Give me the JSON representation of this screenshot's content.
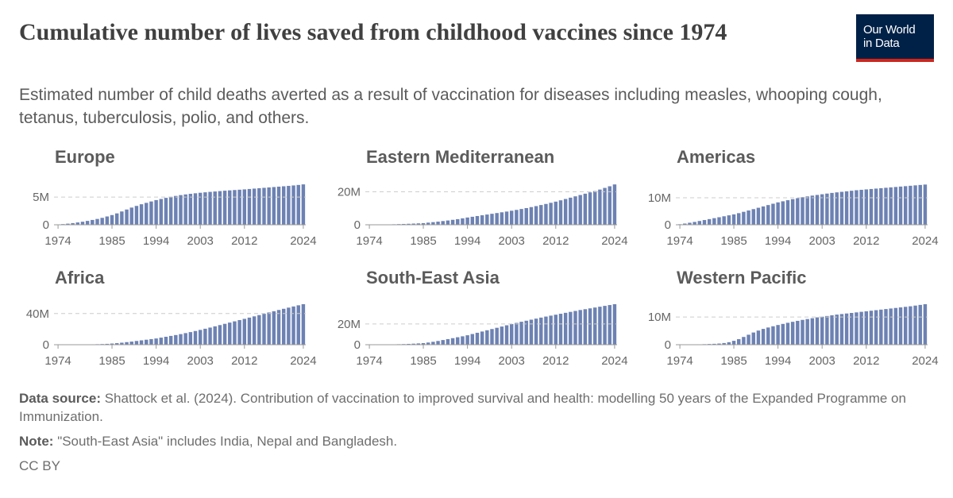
{
  "title": "Cumulative number of lives saved from childhood vaccines since 1974",
  "subtitle": "Estimated number of child deaths averted as a result of vaccination for diseases including measles, whooping cough, tetanus, tuberculosis, polio, and others.",
  "logo": [
    "Our World",
    "in Data"
  ],
  "source_label": "Data source:",
  "source": "Shattock et al. (2024). Contribution of vaccination to improved survival and health: modelling 50 years of the Expanded Programme on Immunization.",
  "note_label": "Note:",
  "note": "\"South-East Asia\" includes India, Nepal and Bangladesh.",
  "license": "CC BY",
  "chart_data": [
    {
      "type": "bar",
      "title": "Europe",
      "color": "#6d82b3",
      "x": [
        1974,
        1975,
        1976,
        1977,
        1978,
        1979,
        1980,
        1981,
        1982,
        1983,
        1984,
        1985,
        1986,
        1987,
        1988,
        1989,
        1990,
        1991,
        1992,
        1993,
        1994,
        1995,
        1996,
        1997,
        1998,
        1999,
        2000,
        2001,
        2002,
        2003,
        2004,
        2005,
        2006,
        2007,
        2008,
        2009,
        2010,
        2011,
        2012,
        2013,
        2014,
        2015,
        2016,
        2017,
        2018,
        2019,
        2020,
        2021,
        2022,
        2023,
        2024
      ],
      "values": [
        0.05,
        0.12,
        0.2,
        0.3,
        0.42,
        0.55,
        0.7,
        0.87,
        1.05,
        1.25,
        1.5,
        1.75,
        2.05,
        2.4,
        2.75,
        3.1,
        3.4,
        3.7,
        3.95,
        4.2,
        4.45,
        4.65,
        4.85,
        5.05,
        5.2,
        5.35,
        5.47,
        5.58,
        5.68,
        5.77,
        5.85,
        5.93,
        6.0,
        6.07,
        6.14,
        6.2,
        6.26,
        6.32,
        6.38,
        6.45,
        6.52,
        6.59,
        6.66,
        6.73,
        6.8,
        6.87,
        6.94,
        7.01,
        7.09,
        7.18,
        7.28
      ],
      "xlim": [
        1973.5,
        2024.5
      ],
      "xticks": [
        1974,
        1985,
        1994,
        2003,
        2012,
        2024
      ],
      "ylim": [
        0,
        7.3
      ],
      "yticks": [
        0,
        {
          "value": 5,
          "label": "5M"
        }
      ],
      "grid": true
    },
    {
      "type": "bar",
      "title": "Eastern Mediterranean",
      "color": "#6d82b3",
      "x": [
        1974,
        1975,
        1976,
        1977,
        1978,
        1979,
        1980,
        1981,
        1982,
        1983,
        1984,
        1985,
        1986,
        1987,
        1988,
        1989,
        1990,
        1991,
        1992,
        1993,
        1994,
        1995,
        1996,
        1997,
        1998,
        1999,
        2000,
        2001,
        2002,
        2003,
        2004,
        2005,
        2006,
        2007,
        2008,
        2009,
        2010,
        2011,
        2012,
        2013,
        2014,
        2015,
        2016,
        2017,
        2018,
        2019,
        2020,
        2021,
        2022,
        2023,
        2024
      ],
      "values": [
        0.02,
        0.05,
        0.1,
        0.15,
        0.22,
        0.3,
        0.4,
        0.5,
        0.6,
        0.72,
        0.85,
        1.0,
        1.3,
        1.6,
        1.9,
        2.25,
        2.6,
        3.0,
        3.4,
        3.9,
        4.4,
        4.85,
        5.3,
        5.75,
        6.2,
        6.65,
        7.1,
        7.55,
        8.0,
        8.5,
        9.0,
        9.55,
        10.1,
        10.7,
        11.3,
        11.95,
        12.6,
        13.3,
        14.0,
        14.8,
        15.6,
        16.4,
        17.2,
        18.0,
        18.8,
        19.6,
        20.4,
        21.3,
        22.3,
        23.3,
        24.4
      ],
      "xlim": [
        1973.5,
        2024.5
      ],
      "xticks": [
        1974,
        1985,
        1994,
        2003,
        2012,
        2024
      ],
      "ylim": [
        0,
        24.5
      ],
      "yticks": [
        0,
        {
          "value": 20,
          "label": "20M"
        }
      ],
      "grid": true
    },
    {
      "type": "bar",
      "title": "Americas",
      "color": "#6d82b3",
      "x": [
        1974,
        1975,
        1976,
        1977,
        1978,
        1979,
        1980,
        1981,
        1982,
        1983,
        1984,
        1985,
        1986,
        1987,
        1988,
        1989,
        1990,
        1991,
        1992,
        1993,
        1994,
        1995,
        1996,
        1997,
        1998,
        1999,
        2000,
        2001,
        2002,
        2003,
        2004,
        2005,
        2006,
        2007,
        2008,
        2009,
        2010,
        2011,
        2012,
        2013,
        2014,
        2015,
        2016,
        2017,
        2018,
        2019,
        2020,
        2021,
        2022,
        2023,
        2024
      ],
      "values": [
        0.2,
        0.45,
        0.75,
        1.05,
        1.4,
        1.75,
        2.1,
        2.45,
        2.8,
        3.15,
        3.5,
        3.85,
        4.3,
        4.8,
        5.3,
        5.8,
        6.3,
        6.8,
        7.3,
        7.8,
        8.3,
        8.7,
        9.1,
        9.5,
        9.85,
        10.2,
        10.5,
        10.8,
        11.05,
        11.3,
        11.55,
        11.8,
        12.0,
        12.2,
        12.4,
        12.6,
        12.8,
        12.95,
        13.1,
        13.25,
        13.4,
        13.55,
        13.7,
        13.85,
        14.0,
        14.15,
        14.3,
        14.45,
        14.6,
        14.75,
        14.9
      ],
      "xlim": [
        1973.5,
        2024.5
      ],
      "xticks": [
        1974,
        1985,
        1994,
        2003,
        2012,
        2024
      ],
      "ylim": [
        0,
        15
      ],
      "yticks": [
        0,
        {
          "value": 10,
          "label": "10M"
        }
      ],
      "grid": true
    },
    {
      "type": "bar",
      "title": "Africa",
      "color": "#6d82b3",
      "x": [
        1974,
        1975,
        1976,
        1977,
        1978,
        1979,
        1980,
        1981,
        1982,
        1983,
        1984,
        1985,
        1986,
        1987,
        1988,
        1989,
        1990,
        1991,
        1992,
        1993,
        1994,
        1995,
        1996,
        1997,
        1998,
        1999,
        2000,
        2001,
        2002,
        2003,
        2004,
        2005,
        2006,
        2007,
        2008,
        2009,
        2010,
        2011,
        2012,
        2013,
        2014,
        2015,
        2016,
        2017,
        2018,
        2019,
        2020,
        2021,
        2022,
        2023,
        2024
      ],
      "values": [
        0,
        0.05,
        0.1,
        0.15,
        0.2,
        0.3,
        0.4,
        0.5,
        0.65,
        0.85,
        1.1,
        1.5,
        2.0,
        2.6,
        3.3,
        4.0,
        4.8,
        5.6,
        6.4,
        7.2,
        8.0,
        9.1,
        10.2,
        11.3,
        12.4,
        13.6,
        14.9,
        16.2,
        17.6,
        19.0,
        20.5,
        22.0,
        23.6,
        25.2,
        26.8,
        28.4,
        30.0,
        31.6,
        33.2,
        34.8,
        36.4,
        38.0,
        39.7,
        41.4,
        43.0,
        44.6,
        46.1,
        47.6,
        49.1,
        50.6,
        52.0
      ],
      "xlim": [
        1973.5,
        2024.5
      ],
      "xticks": [
        1974,
        1985,
        1994,
        2003,
        2012,
        2024
      ],
      "ylim": [
        0,
        52
      ],
      "yticks": [
        0,
        {
          "value": 40,
          "label": "40M"
        }
      ],
      "grid": true
    },
    {
      "type": "bar",
      "title": "South-East Asia",
      "color": "#6d82b3",
      "x": [
        1974,
        1975,
        1976,
        1977,
        1978,
        1979,
        1980,
        1981,
        1982,
        1983,
        1984,
        1985,
        1986,
        1987,
        1988,
        1989,
        1990,
        1991,
        1992,
        1993,
        1994,
        1995,
        1996,
        1997,
        1998,
        1999,
        2000,
        2001,
        2002,
        2003,
        2004,
        2005,
        2006,
        2007,
        2008,
        2009,
        2010,
        2011,
        2012,
        2013,
        2014,
        2015,
        2016,
        2017,
        2018,
        2019,
        2020,
        2021,
        2022,
        2023,
        2024
      ],
      "values": [
        0.02,
        0.05,
        0.1,
        0.17,
        0.25,
        0.35,
        0.47,
        0.6,
        0.78,
        1.0,
        1.25,
        1.55,
        2.1,
        2.8,
        3.6,
        4.5,
        5.4,
        6.3,
        7.2,
        8.1,
        9.1,
        10.3,
        11.5,
        12.7,
        13.9,
        15.1,
        16.3,
        17.5,
        18.7,
        19.9,
        21.0,
        22.1,
        23.1,
        24.1,
        25.1,
        26.1,
        27.1,
        28.0,
        28.9,
        29.8,
        30.7,
        31.6,
        32.5,
        33.4,
        34.2,
        35.0,
        35.8,
        36.6,
        37.4,
        38.2,
        39.0
      ],
      "xlim": [
        1973.5,
        2024.5
      ],
      "xticks": [
        1974,
        1985,
        1994,
        2003,
        2012,
        2024
      ],
      "ylim": [
        0,
        39
      ],
      "yticks": [
        0,
        {
          "value": 20,
          "label": "20M"
        }
      ],
      "grid": true
    },
    {
      "type": "bar",
      "title": "Western Pacific",
      "color": "#6d82b3",
      "x": [
        1974,
        1975,
        1976,
        1977,
        1978,
        1979,
        1980,
        1981,
        1982,
        1983,
        1984,
        1985,
        1986,
        1987,
        1988,
        1989,
        1990,
        1991,
        1992,
        1993,
        1994,
        1995,
        1996,
        1997,
        1998,
        1999,
        2000,
        2001,
        2002,
        2003,
        2004,
        2005,
        2006,
        2007,
        2008,
        2009,
        2010,
        2011,
        2012,
        2013,
        2014,
        2015,
        2016,
        2017,
        2018,
        2019,
        2020,
        2021,
        2022,
        2023,
        2024
      ],
      "values": [
        0.02,
        0.04,
        0.07,
        0.1,
        0.14,
        0.19,
        0.25,
        0.32,
        0.42,
        0.6,
        0.9,
        1.4,
        2.0,
        2.8,
        3.6,
        4.4,
        5.1,
        5.7,
        6.2,
        6.65,
        7.1,
        7.5,
        7.9,
        8.25,
        8.6,
        8.95,
        9.25,
        9.55,
        9.85,
        10.1,
        10.35,
        10.6,
        10.85,
        11.05,
        11.25,
        11.45,
        11.65,
        11.85,
        12.05,
        12.25,
        12.45,
        12.65,
        12.85,
        13.05,
        13.25,
        13.45,
        13.65,
        13.85,
        14.1,
        14.35,
        14.6
      ],
      "xlim": [
        1973.5,
        2024.5
      ],
      "xticks": [
        1974,
        1985,
        1994,
        2003,
        2012,
        2024
      ],
      "ylim": [
        0,
        14.6
      ],
      "yticks": [
        0,
        {
          "value": 10,
          "label": "10M"
        }
      ],
      "grid": true
    }
  ]
}
